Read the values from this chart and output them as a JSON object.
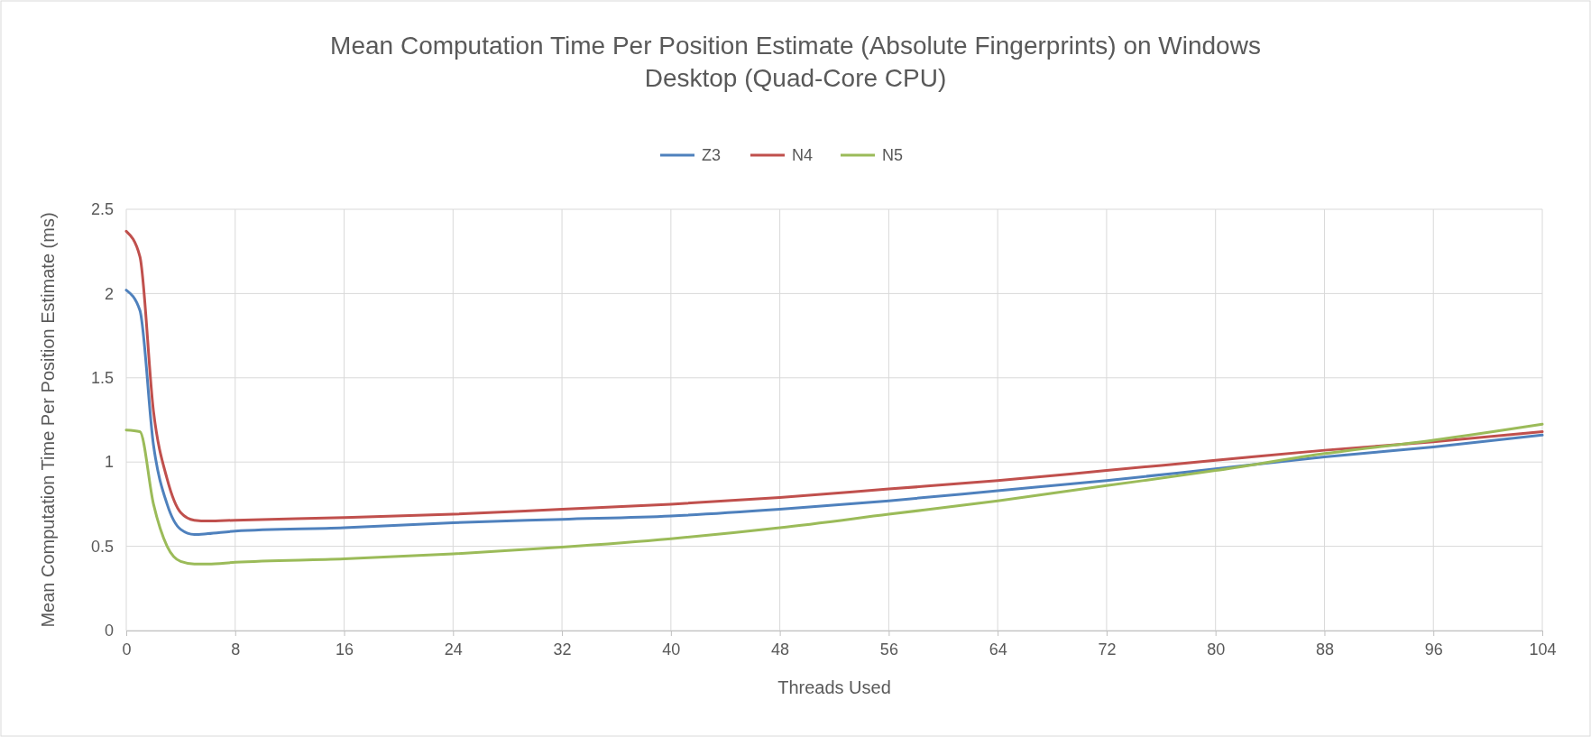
{
  "chart_data": {
    "type": "line",
    "title": "Mean Computation Time Per Position Estimate (Absolute Fingerprints) on Windows Desktop (Quad-Core CPU)",
    "xlabel": "Threads Used",
    "ylabel": "Mean Computation Time Per Position Estimate (ms)",
    "x": [
      0,
      1,
      2,
      3,
      4,
      5,
      6,
      8,
      16,
      24,
      32,
      40,
      48,
      56,
      64,
      72,
      80,
      88,
      96,
      104
    ],
    "series": [
      {
        "name": "Z3",
        "color": "#4f81bd",
        "values": [
          2.02,
          1.9,
          1.1,
          0.75,
          0.6,
          0.57,
          0.575,
          0.59,
          0.61,
          0.64,
          0.66,
          0.68,
          0.72,
          0.77,
          0.83,
          0.89,
          0.96,
          1.03,
          1.09,
          1.16
        ]
      },
      {
        "name": "N4",
        "color": "#c0504d",
        "values": [
          2.37,
          2.22,
          1.3,
          0.9,
          0.7,
          0.655,
          0.65,
          0.655,
          0.67,
          0.69,
          0.72,
          0.75,
          0.79,
          0.84,
          0.89,
          0.95,
          1.01,
          1.07,
          1.12,
          1.18
        ]
      },
      {
        "name": "N5",
        "color": "#9bbb59",
        "values": [
          1.19,
          1.18,
          0.75,
          0.5,
          0.41,
          0.395,
          0.395,
          0.405,
          0.425,
          0.455,
          0.495,
          0.545,
          0.61,
          0.69,
          0.77,
          0.86,
          0.95,
          1.05,
          1.13,
          1.225
        ]
      }
    ],
    "xlim": [
      0,
      104
    ],
    "xticks": [
      0,
      8,
      16,
      24,
      32,
      40,
      48,
      56,
      64,
      72,
      80,
      88,
      96,
      104
    ],
    "ylim": [
      0,
      2.5
    ],
    "yticks": [
      0,
      0.5,
      1,
      1.5,
      2,
      2.5
    ],
    "grid": true,
    "legend": "top",
    "marker": "none",
    "line_style": "solid"
  }
}
